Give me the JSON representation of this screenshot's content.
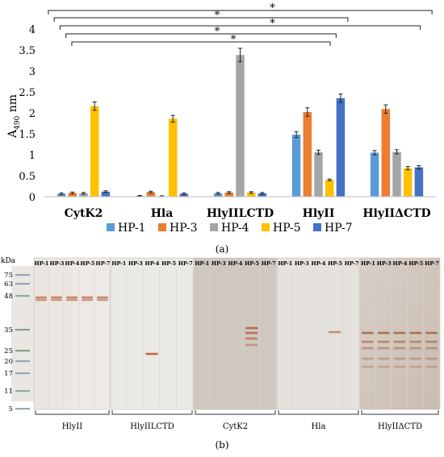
{
  "chart_data": [
    {
      "type": "bar",
      "panel_label": "(a)",
      "ylabel_main": "A",
      "ylabel_sub": "490",
      "ylabel_unit": " nm",
      "ylim": [
        0,
        4
      ],
      "yticks": [
        "0",
        "0.5",
        "1",
        "1.5",
        "2",
        "2.5",
        "3",
        "3.5",
        "4"
      ],
      "grid": false,
      "legend_position": "bottom",
      "categories": [
        "CytK2",
        "Hla",
        "HlyIILCTD",
        "HlyII",
        "HlyIIΔCTD"
      ],
      "series": [
        {
          "name": "HP-1",
          "color": "#5b9bd5",
          "values": [
            0.07,
            0.02,
            0.08,
            1.48,
            1.05
          ],
          "errors": [
            0.02,
            0.01,
            0.02,
            0.07,
            0.05
          ]
        },
        {
          "name": "HP-3",
          "color": "#ed7d31",
          "values": [
            0.09,
            0.11,
            0.1,
            2.02,
            2.09
          ],
          "errors": [
            0.02,
            0.02,
            0.02,
            0.1,
            0.1
          ]
        },
        {
          "name": "HP-4",
          "color": "#a5a5a5",
          "values": [
            0.08,
            0.01,
            3.38,
            1.06,
            1.07
          ],
          "errors": [
            0.02,
            0.01,
            0.16,
            0.05,
            0.05
          ]
        },
        {
          "name": "HP-5",
          "color": "#ffc000",
          "values": [
            2.16,
            1.86,
            0.1,
            0.4,
            0.68
          ],
          "errors": [
            0.1,
            0.08,
            0.02,
            0.02,
            0.04
          ]
        },
        {
          "name": "HP-7",
          "color": "#4472c4",
          "values": [
            0.12,
            0.07,
            0.08,
            2.35,
            0.7
          ],
          "errors": [
            0.02,
            0.02,
            0.02,
            0.1,
            0.04
          ]
        }
      ],
      "significance": [
        {
          "from": "CytK2",
          "to": "HlyIIΔCTD",
          "label": "*"
        },
        {
          "from": "CytK2",
          "to": "HlyII",
          "label": "*"
        },
        {
          "from": "CytK2",
          "to": "HlyIIΔCTD",
          "label": "*"
        },
        {
          "from": "CytK2",
          "to": "HlyII",
          "label": "*"
        },
        {
          "from": "CytK2",
          "to": "HlyII",
          "label": "*"
        }
      ]
    }
  ],
  "blot": {
    "panel_label": "(b)",
    "kda_label": "kDa",
    "kda_markers": [
      "75",
      "63",
      "48",
      "35",
      "25",
      "20",
      "17",
      "11",
      "5"
    ],
    "panels": [
      {
        "name": "HlyII",
        "lanes": [
          "HP-1",
          "HP-3",
          "HP-4",
          "HP-5",
          "HP-7"
        ]
      },
      {
        "name": "HlyIILCTD",
        "lanes": [
          "HP-1",
          "HP-3",
          "HP-4",
          "HP-5",
          "HP-7"
        ]
      },
      {
        "name": "CytK2",
        "lanes": [
          "HP-1",
          "HP-3",
          "HP-4",
          "HP-5",
          "HP-7"
        ]
      },
      {
        "name": "Hla",
        "lanes": [
          "HP-1",
          "HP-3",
          "HP-4",
          "HP-5",
          "HP-7"
        ]
      },
      {
        "name": "HlyIIΔCTD",
        "lanes": [
          "HP-1",
          "HP-3",
          "HP-4",
          "HP-5",
          "HP-7"
        ]
      }
    ]
  }
}
